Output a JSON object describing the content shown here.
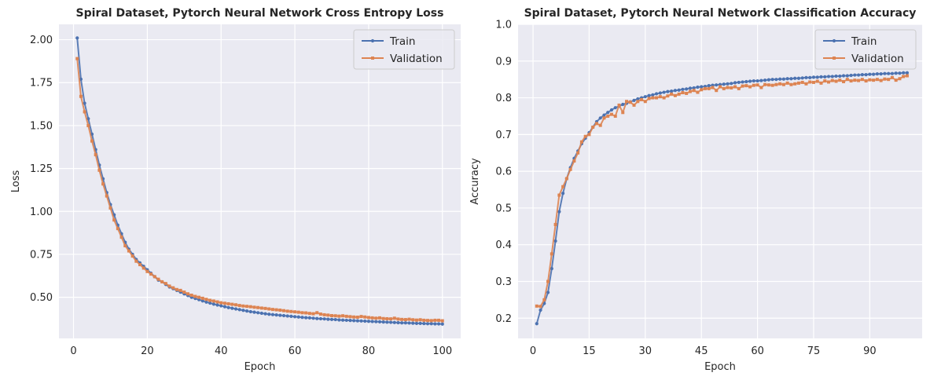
{
  "chart_data": [
    {
      "type": "line",
      "title": "Spiral Dataset, Pytorch Neural Network Cross Entropy Loss",
      "xlabel": "Epoch",
      "ylabel": "Loss",
      "xlim": [
        -3.95,
        104.95
      ],
      "ylim": [
        0.2605,
        2.0895
      ],
      "xticks": [
        0,
        20,
        40,
        60,
        80,
        100
      ],
      "xtick_labels": [
        "0",
        "20",
        "40",
        "60",
        "80",
        "100"
      ],
      "yticks": [
        0.5,
        0.75,
        1.0,
        1.25,
        1.5,
        1.75,
        2.0
      ],
      "ytick_labels": [
        "0.50",
        "0.75",
        "1.00",
        "1.25",
        "1.50",
        "1.75",
        "2.00"
      ],
      "grid": true,
      "legend_position": "top-right",
      "series": [
        {
          "name": "Train",
          "color": "#4c72b0",
          "marker": "circle",
          "x": [
            1,
            2,
            3,
            4,
            5,
            6,
            7,
            8,
            9,
            10,
            11,
            12,
            13,
            14,
            15,
            16,
            17,
            18,
            19,
            20,
            21,
            22,
            23,
            24,
            25,
            26,
            27,
            28,
            29,
            30,
            31,
            32,
            33,
            34,
            35,
            36,
            37,
            38,
            39,
            40,
            41,
            42,
            43,
            44,
            45,
            46,
            47,
            48,
            49,
            50,
            51,
            52,
            53,
            54,
            55,
            56,
            57,
            58,
            59,
            60,
            61,
            62,
            63,
            64,
            65,
            66,
            67,
            68,
            69,
            70,
            71,
            72,
            73,
            74,
            75,
            76,
            77,
            78,
            79,
            80,
            81,
            82,
            83,
            84,
            85,
            86,
            87,
            88,
            89,
            90,
            91,
            92,
            93,
            94,
            95,
            96,
            97,
            98,
            99,
            100
          ],
          "values": [
            2.01,
            1.77,
            1.63,
            1.54,
            1.45,
            1.36,
            1.27,
            1.19,
            1.11,
            1.04,
            0.98,
            0.92,
            0.87,
            0.82,
            0.78,
            0.75,
            0.72,
            0.7,
            0.68,
            0.66,
            0.64,
            0.62,
            0.6,
            0.59,
            0.575,
            0.56,
            0.55,
            0.54,
            0.53,
            0.52,
            0.51,
            0.5,
            0.493,
            0.486,
            0.479,
            0.472,
            0.466,
            0.46,
            0.455,
            0.45,
            0.445,
            0.44,
            0.436,
            0.432,
            0.428,
            0.424,
            0.42,
            0.416,
            0.413,
            0.41,
            0.407,
            0.404,
            0.401,
            0.399,
            0.397,
            0.395,
            0.393,
            0.391,
            0.389,
            0.387,
            0.385,
            0.383,
            0.381,
            0.38,
            0.378,
            0.376,
            0.375,
            0.374,
            0.372,
            0.371,
            0.37,
            0.368,
            0.367,
            0.366,
            0.365,
            0.364,
            0.363,
            0.362,
            0.361,
            0.36,
            0.359,
            0.358,
            0.357,
            0.356,
            0.355,
            0.354,
            0.353,
            0.352,
            0.351,
            0.351,
            0.35,
            0.349,
            0.348,
            0.348,
            0.347,
            0.346,
            0.346,
            0.345,
            0.345,
            0.344
          ]
        },
        {
          "name": "Validation",
          "color": "#dd8452",
          "marker": "square",
          "x": [
            1,
            2,
            3,
            4,
            5,
            6,
            7,
            8,
            9,
            10,
            11,
            12,
            13,
            14,
            15,
            16,
            17,
            18,
            19,
            20,
            21,
            22,
            23,
            24,
            25,
            26,
            27,
            28,
            29,
            30,
            31,
            32,
            33,
            34,
            35,
            36,
            37,
            38,
            39,
            40,
            41,
            42,
            43,
            44,
            45,
            46,
            47,
            48,
            49,
            50,
            51,
            52,
            53,
            54,
            55,
            56,
            57,
            58,
            59,
            60,
            61,
            62,
            63,
            64,
            65,
            66,
            67,
            68,
            69,
            70,
            71,
            72,
            73,
            74,
            75,
            76,
            77,
            78,
            79,
            80,
            81,
            82,
            83,
            84,
            85,
            86,
            87,
            88,
            89,
            90,
            91,
            92,
            93,
            94,
            95,
            96,
            97,
            98,
            99,
            100
          ],
          "values": [
            1.89,
            1.67,
            1.58,
            1.5,
            1.41,
            1.33,
            1.24,
            1.16,
            1.09,
            1.02,
            0.95,
            0.9,
            0.85,
            0.8,
            0.77,
            0.74,
            0.71,
            0.69,
            0.67,
            0.65,
            0.635,
            0.62,
            0.605,
            0.59,
            0.58,
            0.565,
            0.555,
            0.545,
            0.54,
            0.53,
            0.52,
            0.512,
            0.505,
            0.5,
            0.494,
            0.488,
            0.482,
            0.478,
            0.473,
            0.468,
            0.465,
            0.462,
            0.459,
            0.456,
            0.452,
            0.449,
            0.447,
            0.445,
            0.442,
            0.44,
            0.437,
            0.435,
            0.432,
            0.429,
            0.427,
            0.425,
            0.422,
            0.419,
            0.417,
            0.415,
            0.413,
            0.41,
            0.409,
            0.406,
            0.404,
            0.41,
            0.402,
            0.398,
            0.396,
            0.393,
            0.392,
            0.39,
            0.392,
            0.389,
            0.387,
            0.385,
            0.384,
            0.388,
            0.385,
            0.382,
            0.38,
            0.378,
            0.38,
            0.376,
            0.375,
            0.374,
            0.378,
            0.373,
            0.371,
            0.37,
            0.372,
            0.369,
            0.367,
            0.369,
            0.366,
            0.365,
            0.364,
            0.366,
            0.366,
            0.363
          ]
        }
      ]
    },
    {
      "type": "line",
      "title": "Spiral Dataset, Pytorch Neural Network Classification Accuracy",
      "xlabel": "Epoch",
      "ylabel": "Accuracy",
      "xlim": [
        -4,
        104
      ],
      "ylim": [
        0.145,
        1.0
      ],
      "xticks": [
        0,
        15,
        30,
        45,
        60,
        75,
        90
      ],
      "xtick_labels": [
        "0",
        "15",
        "30",
        "45",
        "60",
        "75",
        "90"
      ],
      "yticks": [
        0.2,
        0.3,
        0.4,
        0.5,
        0.6,
        0.7,
        0.8,
        0.9,
        1.0
      ],
      "ytick_labels": [
        "0.2",
        "0.3",
        "0.4",
        "0.5",
        "0.6",
        "0.7",
        "0.8",
        "0.9",
        "1.0"
      ],
      "grid": true,
      "legend_position": "top-right",
      "series": [
        {
          "name": "Train",
          "color": "#4c72b0",
          "marker": "circle",
          "x": [
            1,
            2,
            3,
            4,
            5,
            6,
            7,
            8,
            9,
            10,
            11,
            12,
            13,
            14,
            15,
            16,
            17,
            18,
            19,
            20,
            21,
            22,
            23,
            24,
            25,
            26,
            27,
            28,
            29,
            30,
            31,
            32,
            33,
            34,
            35,
            36,
            37,
            38,
            39,
            40,
            41,
            42,
            43,
            44,
            45,
            46,
            47,
            48,
            49,
            50,
            51,
            52,
            53,
            54,
            55,
            56,
            57,
            58,
            59,
            60,
            61,
            62,
            63,
            64,
            65,
            66,
            67,
            68,
            69,
            70,
            71,
            72,
            73,
            74,
            75,
            76,
            77,
            78,
            79,
            80,
            81,
            82,
            83,
            84,
            85,
            86,
            87,
            88,
            89,
            90,
            91,
            92,
            93,
            94,
            95,
            96,
            97,
            98,
            99,
            100
          ],
          "values": [
            0.185,
            0.222,
            0.24,
            0.27,
            0.335,
            0.41,
            0.49,
            0.54,
            0.58,
            0.61,
            0.635,
            0.655,
            0.675,
            0.69,
            0.705,
            0.72,
            0.735,
            0.745,
            0.753,
            0.76,
            0.767,
            0.773,
            0.777,
            0.782,
            0.785,
            0.789,
            0.793,
            0.797,
            0.8,
            0.803,
            0.806,
            0.808,
            0.811,
            0.813,
            0.815,
            0.817,
            0.818,
            0.82,
            0.821,
            0.823,
            0.824,
            0.826,
            0.827,
            0.829,
            0.83,
            0.831,
            0.833,
            0.834,
            0.835,
            0.836,
            0.837,
            0.838,
            0.839,
            0.841,
            0.842,
            0.843,
            0.844,
            0.845,
            0.846,
            0.846,
            0.847,
            0.848,
            0.849,
            0.85,
            0.85,
            0.851,
            0.851,
            0.852,
            0.852,
            0.853,
            0.853,
            0.854,
            0.855,
            0.855,
            0.856,
            0.856,
            0.857,
            0.857,
            0.858,
            0.858,
            0.859,
            0.859,
            0.86,
            0.86,
            0.861,
            0.862,
            0.862,
            0.863,
            0.863,
            0.864,
            0.864,
            0.865,
            0.865,
            0.866,
            0.866,
            0.866,
            0.867,
            0.867,
            0.868,
            0.868
          ]
        },
        {
          "name": "Validation",
          "color": "#dd8452",
          "marker": "square",
          "x": [
            1,
            2,
            3,
            4,
            5,
            6,
            7,
            8,
            9,
            10,
            11,
            12,
            13,
            14,
            15,
            16,
            17,
            18,
            19,
            20,
            21,
            22,
            23,
            24,
            25,
            26,
            27,
            28,
            29,
            30,
            31,
            32,
            33,
            34,
            35,
            36,
            37,
            38,
            39,
            40,
            41,
            42,
            43,
            44,
            45,
            46,
            47,
            48,
            49,
            50,
            51,
            52,
            53,
            54,
            55,
            56,
            57,
            58,
            59,
            60,
            61,
            62,
            63,
            64,
            65,
            66,
            67,
            68,
            69,
            70,
            71,
            72,
            73,
            74,
            75,
            76,
            77,
            78,
            79,
            80,
            81,
            82,
            83,
            84,
            85,
            86,
            87,
            88,
            89,
            90,
            91,
            92,
            93,
            94,
            95,
            96,
            97,
            98,
            99,
            100
          ],
          "values": [
            0.233,
            0.232,
            0.25,
            0.3,
            0.375,
            0.455,
            0.535,
            0.558,
            0.58,
            0.605,
            0.628,
            0.65,
            0.68,
            0.695,
            0.7,
            0.72,
            0.73,
            0.725,
            0.745,
            0.75,
            0.755,
            0.75,
            0.78,
            0.76,
            0.79,
            0.788,
            0.78,
            0.79,
            0.795,
            0.79,
            0.798,
            0.8,
            0.8,
            0.803,
            0.8,
            0.805,
            0.81,
            0.806,
            0.81,
            0.814,
            0.812,
            0.817,
            0.82,
            0.815,
            0.822,
            0.825,
            0.825,
            0.828,
            0.82,
            0.83,
            0.825,
            0.828,
            0.827,
            0.83,
            0.825,
            0.832,
            0.833,
            0.83,
            0.834,
            0.835,
            0.828,
            0.836,
            0.835,
            0.834,
            0.836,
            0.838,
            0.836,
            0.84,
            0.836,
            0.838,
            0.84,
            0.842,
            0.838,
            0.843,
            0.842,
            0.845,
            0.84,
            0.846,
            0.843,
            0.847,
            0.845,
            0.848,
            0.844,
            0.85,
            0.846,
            0.848,
            0.847,
            0.85,
            0.846,
            0.849,
            0.848,
            0.85,
            0.847,
            0.851,
            0.85,
            0.855,
            0.848,
            0.852,
            0.858,
            0.86
          ]
        }
      ]
    }
  ]
}
